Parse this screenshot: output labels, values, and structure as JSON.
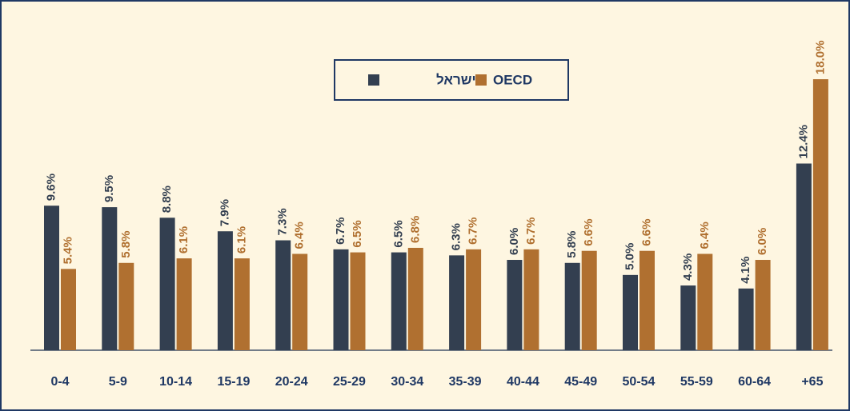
{
  "chart_data": {
    "type": "bar",
    "categories": [
      "0-4",
      "5-9",
      "10-14",
      "15-19",
      "20-24",
      "25-29",
      "30-34",
      "35-39",
      "40-44",
      "45-49",
      "50-54",
      "55-59",
      "60-64",
      "+65"
    ],
    "series": [
      {
        "name": "ישראל",
        "color": "#333f50",
        "values": [
          9.6,
          9.5,
          8.8,
          7.9,
          7.3,
          6.7,
          6.5,
          6.3,
          6.0,
          5.8,
          5.0,
          4.3,
          4.1,
          12.4
        ],
        "value_labels": [
          "9.6%",
          "9.5%",
          "8.8%",
          "7.9%",
          "7.3%",
          "6.7%",
          "6.5%",
          "6.3%",
          "6.0%",
          "5.8%",
          "5.0%",
          "4.3%",
          "4.1%",
          "12.4%"
        ]
      },
      {
        "name": "OECD",
        "color": "#b07030",
        "values": [
          5.4,
          5.8,
          6.1,
          6.1,
          6.4,
          6.5,
          6.8,
          6.7,
          6.7,
          6.6,
          6.6,
          6.4,
          6.0,
          18.0
        ],
        "value_labels": [
          "5.4%",
          "5.8%",
          "6.1%",
          "6.1%",
          "6.4%",
          "6.5%",
          "6.8%",
          "6.7%",
          "6.7%",
          "6.6%",
          "6.6%",
          "6.4%",
          "6.0%",
          "18.0%"
        ]
      }
    ],
    "legend": "top-center"
  }
}
